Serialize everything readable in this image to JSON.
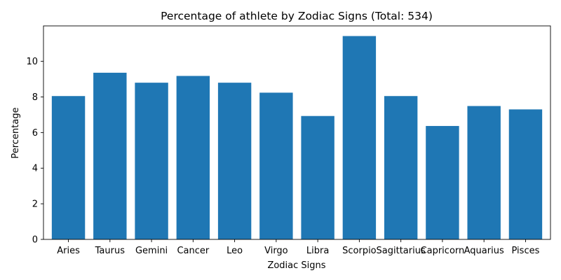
{
  "chart_data": {
    "type": "bar",
    "title": "Percentage of athlete by Zodiac Signs (Total: 534)",
    "xlabel": "Zodiac Signs",
    "ylabel": "Percentage",
    "categories": [
      "Aries",
      "Taurus",
      "Gemini",
      "Cancer",
      "Leo",
      "Virgo",
      "Libra",
      "Scorpio",
      "Sagittarius",
      "Capricorn",
      "Aquarius",
      "Pisces"
    ],
    "values": [
      8.05,
      9.36,
      8.8,
      9.18,
      8.8,
      8.24,
      6.93,
      11.42,
      8.05,
      6.37,
      7.49,
      7.3
    ],
    "ylim": [
      0,
      11.99
    ],
    "yticks": [
      0,
      2,
      4,
      6,
      8,
      10
    ],
    "bar_color": "#1f77b4",
    "grid": false,
    "legend": "none"
  }
}
